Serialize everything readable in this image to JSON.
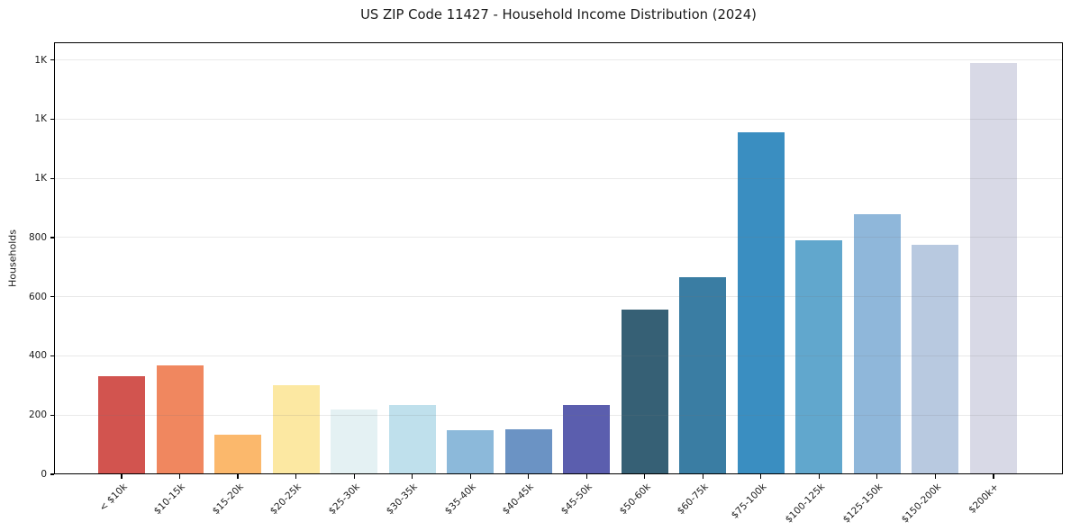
{
  "title": "US ZIP Code 11427 - Household Income Distribution (2024)",
  "chart_data": {
    "type": "bar",
    "title": "US ZIP Code 11427 - Household Income Distribution (2024)",
    "xlabel": "",
    "ylabel": "Households",
    "categories": [
      "< $10k",
      "$10-15k",
      "$15-20k",
      "$20-25k",
      "$25-30k",
      "$30-35k",
      "$35-40k",
      "$40-45k",
      "$45-50k",
      "$50-60k",
      "$60-75k",
      "$75-100k",
      "$100-125k",
      "$125-150k",
      "$150-200k",
      "$200k+"
    ],
    "values": [
      333,
      368,
      134,
      302,
      218,
      233,
      148,
      152,
      233,
      558,
      667,
      1155,
      792,
      880,
      777,
      1390
    ],
    "bar_colors": [
      "#d2544f",
      "#f0875f",
      "#fbb86c",
      "#fce8a2",
      "#e4f1f3",
      "#bfe0ec",
      "#8cb9da",
      "#6b93c4",
      "#5b5eae",
      "#366075",
      "#3a7da3",
      "#3a8ec1",
      "#61a7cd",
      "#8fb7da",
      "#b8c9e0",
      "#d8d9e6"
    ],
    "ylim": [
      0,
      1460
    ],
    "yticks": [
      {
        "value": 0,
        "label": "0"
      },
      {
        "value": 200,
        "label": "200"
      },
      {
        "value": 400,
        "label": "400"
      },
      {
        "value": 600,
        "label": "600"
      },
      {
        "value": 800,
        "label": "800"
      },
      {
        "value": 1000,
        "label": "1K"
      },
      {
        "value": 1200,
        "label": "1K"
      },
      {
        "value": 1400,
        "label": "1K"
      }
    ],
    "grid": true,
    "legend": false,
    "background": "#ffffff",
    "axis_color": "#000000",
    "text_color": "#1c1c1c"
  }
}
